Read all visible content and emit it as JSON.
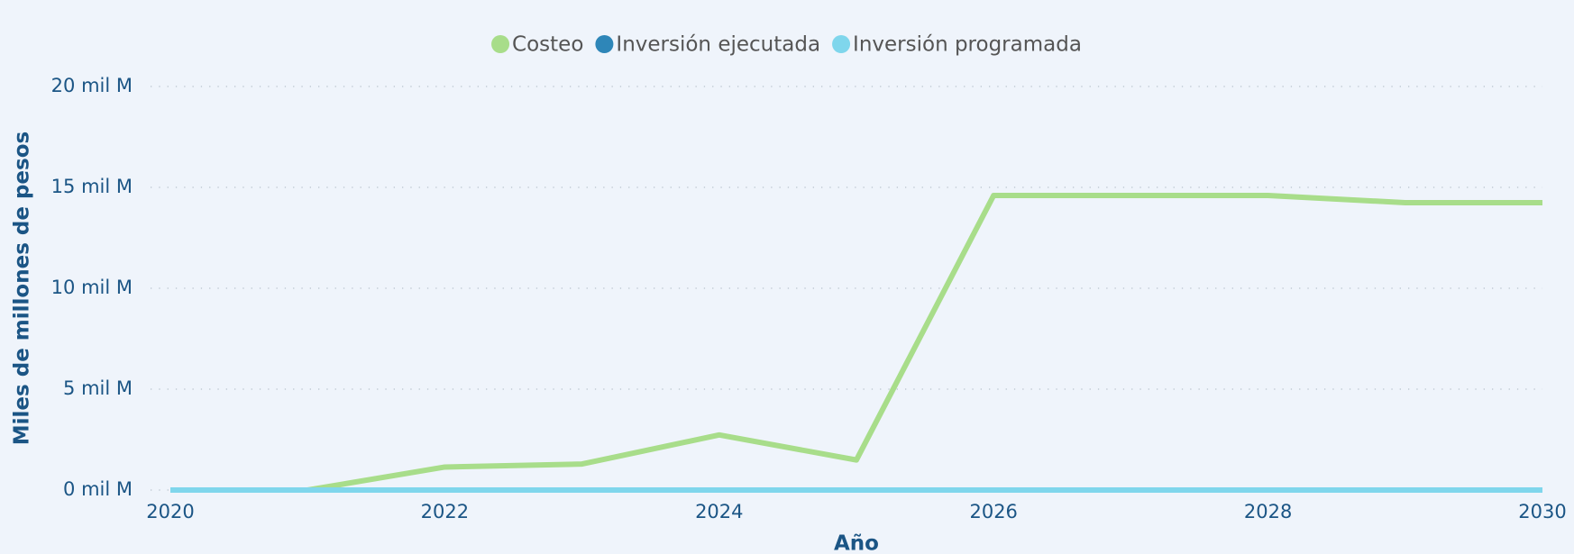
{
  "chart_data": {
    "type": "line",
    "x": [
      2020,
      2021,
      2022,
      2023,
      2024,
      2025,
      2026,
      2027,
      2028,
      2029,
      2030
    ],
    "series": [
      {
        "name": "Costeo",
        "color": "#a8dd8a",
        "values": [
          0,
          0,
          1.14,
          1.29,
          2.73,
          1.49,
          14.6,
          14.6,
          14.6,
          14.24,
          14.24
        ]
      },
      {
        "name": "Inversión ejecutada",
        "color": "#2e86b8",
        "values": [
          0,
          0,
          0,
          0,
          0,
          0,
          0,
          0,
          0,
          0,
          0
        ]
      },
      {
        "name": "Inversión programada",
        "color": "#7fd6ec",
        "values": [
          0,
          0,
          0,
          0,
          0,
          0,
          0,
          0,
          0,
          0,
          0
        ]
      }
    ],
    "xlim": [
      2020,
      2030
    ],
    "xticks": [
      2020,
      2022,
      2024,
      2026,
      2028,
      2030
    ],
    "ylim": [
      0,
      20
    ],
    "yticks": [
      {
        "value": 0,
        "label": "0 mil M"
      },
      {
        "value": 5,
        "label": "5 mil M"
      },
      {
        "value": 10,
        "label": "10 mil M"
      },
      {
        "value": 15,
        "label": "15 mil M"
      },
      {
        "value": 20,
        "label": "20 mil M"
      }
    ],
    "xlabel": "Año",
    "ylabel": "Miles de millones de pesos",
    "grid": true,
    "legend": "top"
  }
}
